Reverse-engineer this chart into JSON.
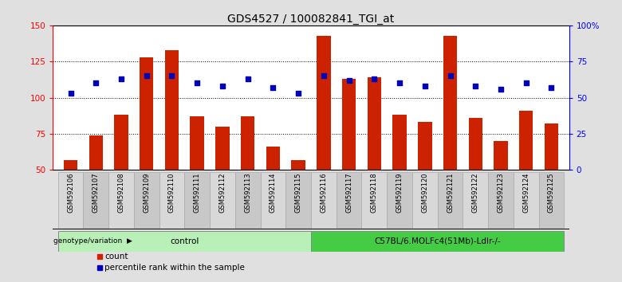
{
  "title": "GDS4527 / 100082841_TGI_at",
  "samples": [
    "GSM592106",
    "GSM592107",
    "GSM592108",
    "GSM592109",
    "GSM592110",
    "GSM592111",
    "GSM592112",
    "GSM592113",
    "GSM592114",
    "GSM592115",
    "GSM592116",
    "GSM592117",
    "GSM592118",
    "GSM592119",
    "GSM592120",
    "GSM592121",
    "GSM592122",
    "GSM592123",
    "GSM592124",
    "GSM592125"
  ],
  "bar_values": [
    57,
    74,
    88,
    128,
    133,
    87,
    80,
    87,
    66,
    57,
    143,
    113,
    114,
    88,
    83,
    143,
    86,
    70,
    91,
    82
  ],
  "dot_values_left": [
    103,
    110,
    113,
    115,
    115,
    110,
    108,
    113,
    107,
    103,
    115,
    112,
    113,
    110,
    108,
    115,
    108,
    106,
    110,
    107
  ],
  "ylim_left": [
    50,
    150
  ],
  "ylim_right": [
    0,
    100
  ],
  "yticks_left": [
    50,
    75,
    100,
    125,
    150
  ],
  "yticks_right": [
    0,
    25,
    50,
    75,
    100
  ],
  "ytick_labels_right": [
    "0",
    "25",
    "50",
    "75",
    "100%"
  ],
  "bar_color": "#CC2200",
  "dot_color": "#0000BB",
  "bg_color": "#e0e0e0",
  "plot_bg": "#ffffff",
  "cell_color_light": "#d8d8d8",
  "cell_color_dark": "#c8c8c8",
  "control_color": "#b8f0b8",
  "c57_color": "#44cc44",
  "group_border_color": "#888888",
  "control_label": "control",
  "c57_label": "C57BL/6.MOLFc4(51Mb)-Ldlr-/-",
  "genotype_label": "genotype/variation",
  "legend_bar": "count",
  "legend_dot": "percentile rank within the sample",
  "title_fontsize": 10,
  "tick_fontsize": 7.5,
  "label_fontsize": 7.5,
  "sample_fontsize": 6.0
}
